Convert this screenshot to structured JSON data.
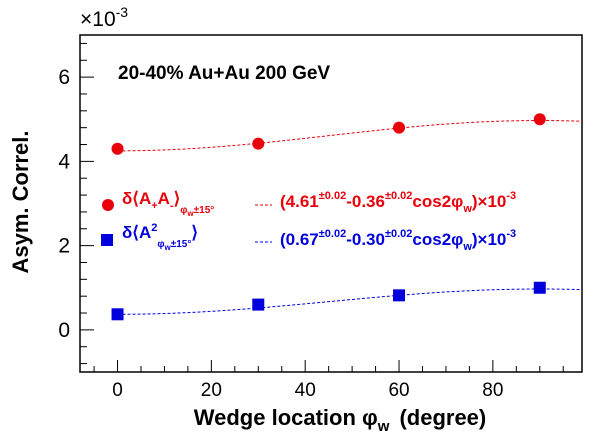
{
  "chart_data": {
    "type": "scatter",
    "title": "20-40% Au+Au 200 GeV",
    "xlabel": "Wedge location φ",
    "xlabel_sub": "w",
    "xlabel_unit": "(degree)",
    "ylabel": "Asym. Correl.",
    "y_exponent_label": "×10",
    "y_exponent_value": "-3",
    "xlim": [
      -8,
      99
    ],
    "ylim": [
      -1,
      7
    ],
    "x_ticks": [
      0,
      20,
      40,
      60,
      80
    ],
    "y_ticks": [
      0,
      2,
      4,
      6
    ],
    "series": [
      {
        "marker": "circle",
        "color": "#e8000b",
        "x": [
          0,
          30,
          60,
          90
        ],
        "y": [
          4.3,
          4.42,
          4.8,
          5.0
        ],
        "fit": {
          "a": 4.61,
          "b": -0.36,
          "x_range": [
            0,
            99
          ]
        },
        "legend_label": "δ⟨A+A-⟩",
        "legend_label_sub": "φw±15°",
        "fit_label": "(4.61±0.02-0.36±0.02cos2φw)×10-3"
      },
      {
        "marker": "square",
        "color": "#0000dd",
        "x": [
          0,
          30,
          60,
          90
        ],
        "y": [
          0.37,
          0.6,
          0.82,
          1.0
        ],
        "fit": {
          "a": 0.67,
          "b": -0.3,
          "x_range": [
            0,
            99
          ]
        },
        "legend_label": "δ⟨A2⟩",
        "legend_label_sub": "φw±15°",
        "fit_label": "(0.67±0.02-0.30±0.02cos2φw)×10-3"
      }
    ]
  }
}
